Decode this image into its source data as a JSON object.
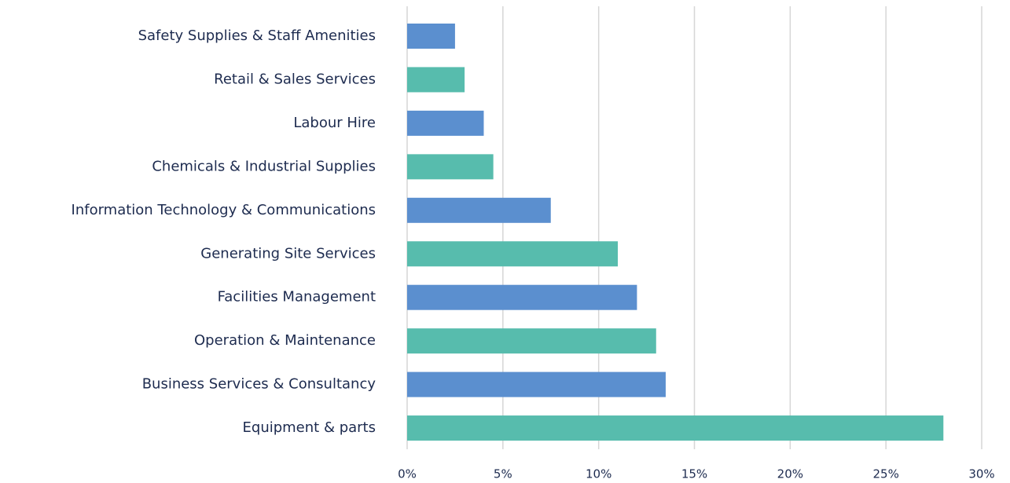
{
  "chart_data": {
    "type": "hbar",
    "categories": [
      "Safety Supplies & Staff Amenities",
      "Retail & Sales Services",
      "Labour Hire",
      "Chemicals & Industrial Supplies",
      "Information Technology & Communications",
      "Generating Site Services",
      "Facilities Management",
      "Operation & Maintenance",
      "Business Services & Consultancy",
      "Equipment & parts"
    ],
    "values": [
      2.5,
      3,
      4,
      4.5,
      7.5,
      11,
      12,
      13,
      13.5,
      28
    ],
    "colors": [
      "#5b8fcf",
      "#57bcad",
      "#5b8fcf",
      "#57bcad",
      "#5b8fcf",
      "#57bcad",
      "#5b8fcf",
      "#57bcad",
      "#5b8fcf",
      "#57bcad"
    ],
    "xlim": [
      0,
      30
    ],
    "xticks": [
      {
        "value": 0,
        "label": "0%"
      },
      {
        "value": 5,
        "label": "5%"
      },
      {
        "value": 10,
        "label": "10%"
      },
      {
        "value": 15,
        "label": "15%"
      },
      {
        "value": 20,
        "label": "20%"
      },
      {
        "value": 25,
        "label": "25%"
      },
      {
        "value": 30,
        "label": "30%"
      }
    ],
    "grid": true
  }
}
